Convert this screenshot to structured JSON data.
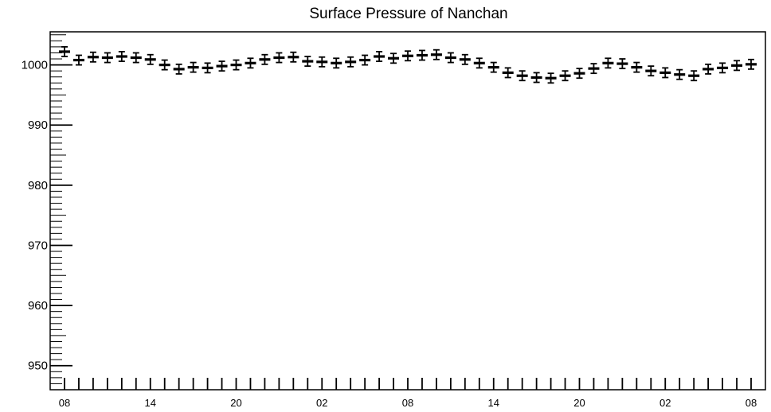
{
  "chart_data": {
    "type": "scatter",
    "title": "Surface Pressure of Nanchan",
    "xlabel": "",
    "ylabel": "",
    "ylim": [
      946,
      1005.5
    ],
    "yticks": [
      950,
      960,
      970,
      980,
      990,
      1000
    ],
    "xtick_labels": [
      "08",
      "14",
      "20",
      "02",
      "08",
      "14",
      "20",
      "02",
      "08"
    ],
    "error_bar": 0.8,
    "grid": false,
    "series": [
      {
        "values": [
          1002.2,
          1000.8,
          1001.3,
          1001.2,
          1001.4,
          1001.2,
          1000.9,
          1000.0,
          999.3,
          999.6,
          999.5,
          999.8,
          1000.0,
          1000.3,
          1000.9,
          1001.2,
          1001.3,
          1000.6,
          1000.5,
          1000.3,
          1000.5,
          1000.8,
          1001.4,
          1001.1,
          1001.5,
          1001.6,
          1001.7,
          1001.2,
          1000.9,
          1000.3,
          999.6,
          998.7,
          998.2,
          997.9,
          997.8,
          998.2,
          998.6,
          999.4,
          1000.3,
          1000.2,
          999.6,
          999.0,
          998.7,
          998.4,
          998.2,
          999.3,
          999.5,
          999.9,
          1000.1
        ]
      }
    ]
  }
}
